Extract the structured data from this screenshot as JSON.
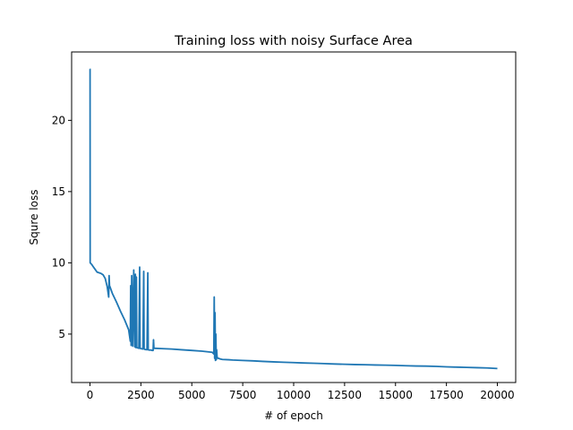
{
  "chart_data": {
    "type": "line",
    "title": "Training loss with noisy Surface Area",
    "xlabel": "# of epoch",
    "ylabel": "Squre loss",
    "xlim": [
      -900,
      20900
    ],
    "ylim": [
      1.6,
      24.8
    ],
    "x_ticks": [
      0,
      2500,
      5000,
      7500,
      10000,
      12500,
      15000,
      17500,
      20000
    ],
    "y_ticks": [
      5,
      10,
      15,
      20
    ],
    "grid": false,
    "legend": "none",
    "colors": {
      "series": "#1f77b4",
      "axes": "#000000"
    },
    "series": [
      {
        "x": [
          0,
          5,
          10,
          20,
          40,
          80,
          150,
          250,
          350,
          450,
          550,
          650,
          750,
          800,
          850,
          900,
          920,
          940,
          960,
          1000,
          1100,
          1300,
          1500,
          1700,
          1900,
          1980,
          2000,
          2020,
          2050,
          2100,
          2150,
          2200,
          2230,
          2250,
          2280,
          2300,
          2400,
          2440,
          2460,
          2500,
          2600,
          2640,
          2660,
          2700,
          2800,
          2840,
          2860,
          2900,
          3000,
          3050,
          3100,
          3120,
          3140,
          3200,
          3500,
          4000,
          4500,
          5000,
          5500,
          6000,
          6080,
          6100,
          6120,
          6140,
          6160,
          6180,
          6200,
          6220,
          6240,
          6260,
          6280,
          6300,
          6350,
          6400,
          6500,
          6800,
          7000,
          7500,
          8000,
          8500,
          9000,
          9500,
          10000,
          10500,
          11000,
          11500,
          12000,
          12500,
          13000,
          13500,
          14000,
          14500,
          15000,
          15500,
          16000,
          16500,
          17000,
          17500,
          18000,
          18500,
          19000,
          19500,
          20000
        ],
        "y": [
          23.6,
          23.6,
          10.0,
          10.0,
          9.95,
          9.9,
          9.75,
          9.55,
          9.35,
          9.3,
          9.25,
          9.15,
          8.9,
          8.6,
          8.3,
          7.8,
          7.6,
          9.1,
          8.4,
          8.25,
          7.85,
          7.25,
          6.6,
          6.0,
          5.3,
          4.5,
          8.4,
          4.2,
          9.1,
          4.15,
          9.5,
          4.1,
          9.2,
          4.05,
          9.0,
          4.05,
          4.0,
          9.7,
          4.0,
          3.98,
          3.95,
          9.4,
          3.95,
          3.92,
          3.9,
          9.3,
          3.9,
          3.88,
          3.88,
          3.85,
          3.85,
          4.6,
          4.0,
          4.0,
          3.98,
          3.95,
          3.9,
          3.85,
          3.8,
          3.72,
          3.6,
          7.6,
          3.3,
          6.5,
          3.15,
          5.0,
          3.2,
          3.9,
          3.4,
          3.35,
          3.3,
          3.3,
          3.28,
          3.25,
          3.22,
          3.2,
          3.18,
          3.15,
          3.12,
          3.08,
          3.05,
          3.02,
          3.0,
          2.97,
          2.95,
          2.93,
          2.9,
          2.88,
          2.86,
          2.85,
          2.83,
          2.82,
          2.8,
          2.78,
          2.76,
          2.75,
          2.73,
          2.7,
          2.68,
          2.66,
          2.64,
          2.62,
          2.58
        ]
      }
    ]
  }
}
